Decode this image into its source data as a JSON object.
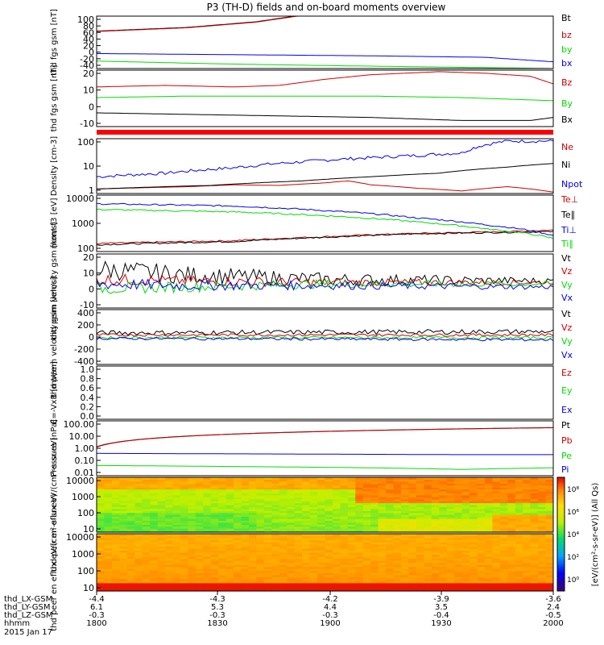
{
  "title": "P3 (TH-D) fields and on-board moments overview",
  "colors": {
    "black": "#000000",
    "red": "#d00000",
    "green": "#00dd00",
    "blue": "#0000ee",
    "marker": "#ff0000"
  },
  "x_axis": {
    "ticks": [
      "1800",
      "1830",
      "1900",
      "1930",
      "2000"
    ],
    "rows": [
      {
        "label": "thd_LX-GSM",
        "values": [
          "-4.4",
          "-4.3",
          "-4.2",
          "-3.9",
          "-3.6"
        ]
      },
      {
        "label": "thd_LY-GSM",
        "values": [
          "6.1",
          "5.3",
          "4.4",
          "3.5",
          "2.4"
        ]
      },
      {
        "label": "thd_LZ-GSM",
        "values": [
          "-0.3",
          "-0.3",
          "-0.3",
          "-0.4",
          "-0.5"
        ]
      },
      {
        "label": "hhmm",
        "values": [
          "1800",
          "1830",
          "1900",
          "1930",
          "2000"
        ]
      }
    ],
    "date": "2015 Jan 17"
  },
  "colorbar": {
    "label": "[eV/(cm²-s-sr-eV)] (All Qs)",
    "ticks": [
      "10⁸",
      "10⁶",
      "10⁴",
      "10²",
      "10⁰"
    ]
  },
  "chart_data": [
    {
      "type": "line",
      "id": "fgs_full",
      "ylabel": "thd fgs gsm [nT]",
      "ytick_labels": [
        "100",
        "80",
        "60",
        "40",
        "20",
        "0",
        "-20",
        "-40"
      ],
      "ylim": [
        -40,
        100
      ],
      "series": [
        {
          "name": "Bt",
          "color": "black",
          "x": [
            0,
            0.2,
            0.35,
            0.45
          ],
          "y": [
            60,
            70,
            85,
            103
          ]
        },
        {
          "name": "bz",
          "color": "red",
          "x": [
            0,
            0.2,
            0.35,
            0.45
          ],
          "y": [
            59,
            69,
            84,
            102
          ]
        },
        {
          "name": "by",
          "color": "green",
          "x": [
            0,
            0.25,
            0.5,
            0.75,
            1
          ],
          "y": [
            -20,
            -27,
            -32,
            -36,
            -40
          ]
        },
        {
          "name": "bx",
          "color": "blue",
          "x": [
            0,
            0.3,
            0.6,
            0.85,
            1
          ],
          "y": [
            0,
            -3,
            -6,
            -10,
            -22
          ]
        }
      ],
      "legend": [
        "Bt",
        "bz",
        "by",
        "bx"
      ]
    },
    {
      "type": "line",
      "id": "fgs_zoom",
      "ylabel": "thd fgs gsm [nT]",
      "ytick_labels": [
        "20",
        "10",
        "0",
        "-10"
      ],
      "ylim": [
        -15,
        22
      ],
      "series": [
        {
          "name": "Bz",
          "color": "red",
          "x": [
            0,
            0.15,
            0.3,
            0.4,
            0.5,
            0.6,
            0.75,
            0.85,
            0.95,
            1
          ],
          "y": [
            11,
            12,
            11,
            12,
            16,
            19,
            21,
            20,
            18,
            13
          ]
        },
        {
          "name": "By",
          "color": "green",
          "x": [
            0,
            0.2,
            0.4,
            0.6,
            0.8,
            1
          ],
          "y": [
            4,
            5,
            5,
            5,
            4,
            2
          ]
        },
        {
          "name": "Bx",
          "color": "black",
          "x": [
            0,
            0.2,
            0.4,
            0.6,
            0.8,
            0.95,
            1
          ],
          "y": [
            -6,
            -7,
            -8,
            -9,
            -11,
            -11,
            -9
          ]
        }
      ],
      "legend": [
        "Bz",
        "By",
        "Bx"
      ]
    },
    {
      "type": "line",
      "id": "density",
      "ylabel": "Density [cm-3]",
      "ytick_labels": [
        "100",
        "10",
        "1"
      ],
      "ylim": [
        0.6,
        300
      ],
      "log": true,
      "series": [
        {
          "name": "Ne",
          "color": "red",
          "x": [
            0,
            0.2,
            0.3,
            0.4,
            0.5,
            0.55,
            0.6,
            0.7,
            0.8,
            0.9,
            1
          ],
          "y": [
            1,
            1.3,
            1.6,
            1.5,
            2,
            2.5,
            1.6,
            1.1,
            0.8,
            1.3,
            0.7
          ]
        },
        {
          "name": "Ni",
          "color": "black",
          "x": [
            0,
            0.25,
            0.45,
            0.6,
            0.75,
            0.9,
            1
          ],
          "y": [
            1,
            1.5,
            2.5,
            4,
            6,
            12,
            18
          ]
        },
        {
          "name": "Npot",
          "color": "blue",
          "x": [
            0,
            0.15,
            0.3,
            0.45,
            0.6,
            0.7,
            0.8,
            0.85,
            0.9,
            1
          ],
          "y": [
            4,
            6,
            11,
            22,
            35,
            45,
            60,
            150,
            230,
            230
          ]
        }
      ],
      "legend": [
        "Ne",
        "Ni",
        "Npot"
      ]
    },
    {
      "type": "line",
      "id": "temperature",
      "ylabel": "mom t3 [eV]",
      "ytick_labels": [
        "10000",
        "1000",
        "100"
      ],
      "ylim": [
        40,
        12000
      ],
      "log": true,
      "series": [
        {
          "name": "Te⊥",
          "color": "red",
          "x": [
            0,
            0.3,
            0.5,
            0.7,
            0.9,
            1
          ],
          "y": [
            90,
            120,
            180,
            250,
            300,
            350
          ]
        },
        {
          "name": "Te∥",
          "color": "black",
          "x": [
            0,
            0.3,
            0.5,
            0.7,
            0.9,
            1
          ],
          "y": [
            80,
            110,
            170,
            240,
            280,
            300
          ]
        },
        {
          "name": "Ti⊥",
          "color": "blue",
          "x": [
            0,
            0.3,
            0.5,
            0.7,
            0.85,
            1
          ],
          "y": [
            5000,
            4000,
            2500,
            1200,
            600,
            200
          ]
        },
        {
          "name": "Ti∥",
          "color": "green",
          "x": [
            0,
            0.3,
            0.5,
            0.7,
            0.85,
            1
          ],
          "y": [
            2800,
            2200,
            1500,
            800,
            400,
            150
          ]
        }
      ],
      "legend": [
        "Te⊥",
        "Te∥",
        "Ti⊥",
        "Ti∥"
      ]
    },
    {
      "type": "line",
      "id": "peim_velocity",
      "ylabel": "thd peim velocity gsm [km/s]",
      "ytick_labels": [
        "20",
        "10",
        "0",
        "-10"
      ],
      "ylim": [
        -16,
        20
      ],
      "series": [
        {
          "name": "Vt",
          "color": "black",
          "x": [
            0,
            0.2,
            0.5,
            1
          ],
          "y": [
            10,
            6,
            3,
            2
          ]
        },
        {
          "name": "Vz",
          "color": "red",
          "x": [
            0,
            0.2,
            0.5,
            1
          ],
          "y": [
            3,
            2,
            1,
            1
          ]
        },
        {
          "name": "Vy",
          "color": "green",
          "x": [
            0,
            0.2,
            0.5,
            1
          ],
          "y": [
            -3,
            -2,
            0,
            0
          ]
        },
        {
          "name": "Vx",
          "color": "blue",
          "x": [
            0,
            0.2,
            0.5,
            1
          ],
          "y": [
            0,
            -1,
            -1,
            -2
          ]
        }
      ],
      "legend": [
        "Vt",
        "Vz",
        "Vy",
        "Vx"
      ]
    },
    {
      "type": "line",
      "id": "peem_velocity",
      "ylabel": "thd peem velocity gsm [km/s]",
      "ytick_labels": [
        "400",
        "200",
        "0",
        "-200",
        "-400"
      ],
      "ylim": [
        -400,
        400
      ],
      "series": [
        {
          "name": "Vt",
          "color": "black",
          "x": [
            0,
            0.5,
            1
          ],
          "y": [
            60,
            70,
            80
          ]
        },
        {
          "name": "Vz",
          "color": "red",
          "x": [
            0,
            0.5,
            1
          ],
          "y": [
            30,
            30,
            30
          ]
        },
        {
          "name": "Vy",
          "color": "green",
          "x": [
            0,
            0.5,
            1
          ],
          "y": [
            -10,
            -10,
            -10
          ]
        },
        {
          "name": "Vx",
          "color": "blue",
          "x": [
            0,
            0.5,
            1
          ],
          "y": [
            -20,
            -30,
            -40
          ]
        }
      ],
      "legend": [
        "Vt",
        "Vz",
        "Vy",
        "Vx"
      ]
    },
    {
      "type": "line",
      "id": "efield",
      "ylabel": "E=-VxB [mV/m]",
      "ytick_labels": [
        "1.0",
        "0.8",
        "0.6",
        "0.4",
        "0.2",
        "0.0"
      ],
      "ylim": [
        0,
        1
      ],
      "series": [],
      "legend": [
        "Ez",
        "Ey",
        "Ex"
      ]
    },
    {
      "type": "line",
      "id": "pressure",
      "ylabel": "Pressure [nPa]",
      "ytick_labels": [
        "100.00",
        "10.00",
        "1.00",
        "0.10",
        "0.01"
      ],
      "ylim": [
        0.01,
        150
      ],
      "log": true,
      "series": [
        {
          "name": "Pt",
          "color": "black",
          "x": [
            0,
            1
          ],
          "y": [
            1.6,
            46
          ]
        },
        {
          "name": "Pb",
          "color": "red",
          "x": [
            0,
            1
          ],
          "y": [
            1.5,
            45
          ]
        },
        {
          "name": "Pe",
          "color": "green",
          "x": [
            0,
            0.3,
            0.6,
            0.8,
            1
          ],
          "y": [
            0.06,
            0.05,
            0.04,
            0.03,
            0.04
          ]
        },
        {
          "name": "Pi",
          "color": "blue",
          "x": [
            0,
            0.4,
            0.8,
            1
          ],
          "y": [
            0.5,
            0.45,
            0.4,
            0.4
          ]
        }
      ],
      "legend": [
        "Pt",
        "Pb",
        "Pe",
        "Pi"
      ]
    },
    {
      "type": "heatmap",
      "id": "peir",
      "ylabel": "thd peir en eflux eV/(cm²-s-sr-eV)",
      "ytick_labels": [
        "10000",
        "1000",
        "100",
        "10"
      ],
      "ylim": [
        5,
        25000
      ],
      "log": true,
      "zlim": [
        1,
        100000000
      ],
      "zlog": true,
      "dominant": "ion spectrogram: green/yellow at low energies, orange above ~2000 eV, upper band red-orange after 1930"
    },
    {
      "type": "heatmap",
      "id": "peer",
      "ylabel": "thd peer en eflux eV/(cm²-s-sr-eV)",
      "ytick_labels": [
        "10000",
        "1000",
        "100",
        "10"
      ],
      "ylim": [
        5,
        25000
      ],
      "log": true,
      "zlim": [
        1,
        100000000
      ],
      "zlog": true,
      "dominant": "electron spectrogram: red below ~30 eV, orange 30-5000 eV, lighter orange at top"
    }
  ]
}
